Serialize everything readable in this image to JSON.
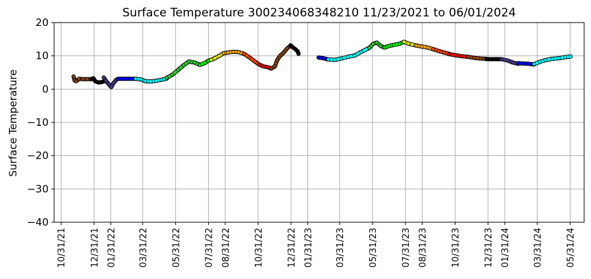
{
  "chart_data": {
    "type": "scatter",
    "title": "Surface Temperature 300234068348210  11/23/2021 to 06/01/2024",
    "xlabel": "",
    "ylabel": "Surface Temperature",
    "ylim": [
      -40,
      20
    ],
    "yticks": [
      20,
      10,
      0,
      -10,
      -20,
      -30,
      -40
    ],
    "xlim": [
      "2021-10-18",
      "2024-06-26"
    ],
    "xticks": [
      {
        "date": "2021-10-31",
        "label": "10/31/21"
      },
      {
        "date": "2021-12-31",
        "label": "12/31/21"
      },
      {
        "date": "2022-01-31",
        "label": "01/31/22"
      },
      {
        "date": "2022-03-31",
        "label": "03/31/22"
      },
      {
        "date": "2022-05-31",
        "label": "05/31/22"
      },
      {
        "date": "2022-07-31",
        "label": "07/31/22"
      },
      {
        "date": "2022-08-31",
        "label": "08/31/22"
      },
      {
        "date": "2022-10-31",
        "label": "10/31/22"
      },
      {
        "date": "2022-12-31",
        "label": "12/31/22"
      },
      {
        "date": "2023-01-31",
        "label": "01/31/23"
      },
      {
        "date": "2023-03-31",
        "label": "03/31/23"
      },
      {
        "date": "2023-05-31",
        "label": "05/31/23"
      },
      {
        "date": "2023-07-31",
        "label": "07/31/23"
      },
      {
        "date": "2023-08-31",
        "label": "08/31/23"
      },
      {
        "date": "2023-10-31",
        "label": "10/31/23"
      },
      {
        "date": "2023-12-31",
        "label": "12/31/23"
      },
      {
        "date": "2024-01-31",
        "label": "01/31/24"
      },
      {
        "date": "2024-03-31",
        "label": "03/31/24"
      },
      {
        "date": "2024-05-31",
        "label": "05/31/24"
      }
    ],
    "grid": true,
    "segments": [
      {
        "color": "#8B4513",
        "points": [
          [
            "2021-11-23",
            3.8
          ],
          [
            "2021-11-25",
            2.6
          ],
          [
            "2021-11-28",
            2.4
          ],
          [
            "2021-12-03",
            3.1
          ],
          [
            "2021-12-10",
            3.0
          ],
          [
            "2021-12-18",
            3.0
          ],
          [
            "2021-12-26",
            3.0
          ]
        ]
      },
      {
        "color": "#000000",
        "points": [
          [
            "2021-12-26",
            3.0
          ],
          [
            "2021-12-30",
            3.3
          ],
          [
            "2022-01-02",
            2.4
          ],
          [
            "2022-01-08",
            2.0
          ],
          [
            "2022-01-14",
            2.1
          ],
          [
            "2022-01-18",
            2.3
          ]
        ]
      },
      {
        "color": "#483D8B",
        "points": [
          [
            "2022-01-18",
            3.5
          ],
          [
            "2022-01-22",
            2.5
          ],
          [
            "2022-01-27",
            1.5
          ],
          [
            "2022-02-01",
            0.6
          ],
          [
            "2022-02-05",
            1.8
          ],
          [
            "2022-02-10",
            2.8
          ],
          [
            "2022-02-14",
            3.1
          ]
        ]
      },
      {
        "color": "#0000FF",
        "points": [
          [
            "2022-02-14",
            3.1
          ],
          [
            "2022-02-25",
            3.1
          ],
          [
            "2022-03-08",
            3.1
          ],
          [
            "2022-03-18",
            3.1
          ]
        ]
      },
      {
        "color": "#00FFFF",
        "points": [
          [
            "2022-03-18",
            3.1
          ],
          [
            "2022-03-28",
            2.9
          ],
          [
            "2022-04-05",
            2.4
          ],
          [
            "2022-04-15",
            2.3
          ],
          [
            "2022-04-25",
            2.5
          ],
          [
            "2022-05-05",
            2.8
          ],
          [
            "2022-05-15",
            3.2
          ]
        ]
      },
      {
        "color": "#32CD32",
        "points": [
          [
            "2022-05-15",
            3.4
          ],
          [
            "2022-05-25",
            4.3
          ],
          [
            "2022-06-05",
            5.8
          ],
          [
            "2022-06-15",
            7.2
          ],
          [
            "2022-06-25",
            8.3
          ],
          [
            "2022-07-05",
            8.0
          ],
          [
            "2022-07-15",
            7.3
          ]
        ]
      },
      {
        "color": "#00FF00",
        "points": [
          [
            "2022-07-15",
            7.3
          ],
          [
            "2022-07-25",
            7.9
          ],
          [
            "2022-07-31",
            8.6
          ],
          [
            "2022-08-05",
            8.8
          ]
        ]
      },
      {
        "color": "#FFFF00",
        "points": [
          [
            "2022-08-05",
            8.8
          ],
          [
            "2022-08-12",
            9.3
          ],
          [
            "2022-08-20",
            10.0
          ],
          [
            "2022-08-28",
            10.8
          ]
        ]
      },
      {
        "color": "#FFA500",
        "points": [
          [
            "2022-08-28",
            10.8
          ],
          [
            "2022-09-05",
            11.0
          ],
          [
            "2022-09-15",
            11.2
          ],
          [
            "2022-09-25",
            11.1
          ],
          [
            "2022-10-05",
            10.6
          ]
        ]
      },
      {
        "color": "#FF4500",
        "points": [
          [
            "2022-10-05",
            10.6
          ],
          [
            "2022-10-15",
            9.5
          ],
          [
            "2022-10-25",
            8.3
          ],
          [
            "2022-11-02",
            7.4
          ]
        ]
      },
      {
        "color": "#FF0000",
        "points": [
          [
            "2022-11-02",
            7.4
          ],
          [
            "2022-11-10",
            6.8
          ],
          [
            "2022-11-18",
            6.6
          ],
          [
            "2022-11-24",
            6.2
          ]
        ]
      },
      {
        "color": "#8B4513",
        "points": [
          [
            "2022-11-24",
            6.2
          ],
          [
            "2022-12-01",
            6.8
          ],
          [
            "2022-12-05",
            8.6
          ],
          [
            "2022-12-10",
            9.9
          ],
          [
            "2022-12-17",
            10.9
          ],
          [
            "2022-12-24",
            12.3
          ],
          [
            "2022-12-30",
            13.0
          ]
        ]
      },
      {
        "color": "#000000",
        "points": [
          [
            "2022-12-30",
            13.2
          ],
          [
            "2023-01-03",
            12.6
          ],
          [
            "2023-01-08",
            12.0
          ],
          [
            "2023-01-12",
            11.4
          ],
          [
            "2023-01-14",
            10.6
          ]
        ]
      },
      {
        "color": "#0000FF",
        "points": [
          [
            "2023-02-20",
            9.5
          ],
          [
            "2023-03-01",
            9.3
          ],
          [
            "2023-03-10",
            8.9
          ]
        ]
      },
      {
        "color": "#00FFFF",
        "points": [
          [
            "2023-03-10",
            8.9
          ],
          [
            "2023-03-22",
            8.8
          ],
          [
            "2023-04-03",
            9.2
          ],
          [
            "2023-04-15",
            9.7
          ],
          [
            "2023-04-28",
            10.1
          ],
          [
            "2023-05-10",
            11.2
          ],
          [
            "2023-05-25",
            12.4
          ]
        ]
      },
      {
        "color": "#32CD32",
        "points": [
          [
            "2023-05-25",
            12.4
          ],
          [
            "2023-06-01",
            13.6
          ],
          [
            "2023-06-08",
            14.0
          ],
          [
            "2023-06-15",
            13.0
          ],
          [
            "2023-06-22",
            12.5
          ]
        ]
      },
      {
        "color": "#00FF00",
        "points": [
          [
            "2023-06-22",
            12.5
          ],
          [
            "2023-07-01",
            13.0
          ],
          [
            "2023-07-10",
            13.3
          ],
          [
            "2023-07-20",
            13.6
          ],
          [
            "2023-07-28",
            14.2
          ]
        ]
      },
      {
        "color": "#FFFF00",
        "points": [
          [
            "2023-07-28",
            14.2
          ],
          [
            "2023-08-05",
            13.7
          ],
          [
            "2023-08-12",
            13.4
          ],
          [
            "2023-08-20",
            13.1
          ]
        ]
      },
      {
        "color": "#FFA500",
        "points": [
          [
            "2023-08-20",
            13.1
          ],
          [
            "2023-08-30",
            12.8
          ],
          [
            "2023-09-10",
            12.5
          ],
          [
            "2023-09-20",
            12.0
          ]
        ]
      },
      {
        "color": "#FF4500",
        "points": [
          [
            "2023-09-20",
            12.0
          ],
          [
            "2023-09-30",
            11.5
          ],
          [
            "2023-10-10",
            11.0
          ],
          [
            "2023-10-20",
            10.6
          ]
        ]
      },
      {
        "color": "#FF0000",
        "points": [
          [
            "2023-10-20",
            10.5
          ],
          [
            "2023-10-31",
            10.2
          ],
          [
            "2023-11-12",
            9.9
          ],
          [
            "2023-11-24",
            9.7
          ]
        ]
      },
      {
        "color": "#8B4513",
        "points": [
          [
            "2023-11-24",
            9.7
          ],
          [
            "2023-12-05",
            9.4
          ],
          [
            "2023-12-18",
            9.2
          ],
          [
            "2023-12-28",
            9.1
          ]
        ]
      },
      {
        "color": "#000000",
        "points": [
          [
            "2023-12-28",
            9.0
          ],
          [
            "2024-01-05",
            9.0
          ],
          [
            "2024-01-15",
            9.0
          ],
          [
            "2024-01-25",
            9.0
          ]
        ]
      },
      {
        "color": "#483D8B",
        "points": [
          [
            "2024-01-25",
            9.0
          ],
          [
            "2024-02-05",
            8.6
          ],
          [
            "2024-02-15",
            8.0
          ],
          [
            "2024-02-25",
            7.6
          ]
        ]
      },
      {
        "color": "#0000FF",
        "points": [
          [
            "2024-02-25",
            7.8
          ],
          [
            "2024-03-05",
            7.7
          ],
          [
            "2024-03-15",
            7.6
          ],
          [
            "2024-03-25",
            7.4
          ]
        ]
      },
      {
        "color": "#00FFFF",
        "points": [
          [
            "2024-03-25",
            7.5
          ],
          [
            "2024-04-05",
            8.2
          ],
          [
            "2024-04-15",
            8.7
          ],
          [
            "2024-04-28",
            9.1
          ],
          [
            "2024-05-10",
            9.3
          ],
          [
            "2024-05-22",
            9.6
          ],
          [
            "2024-06-01",
            9.8
          ]
        ]
      }
    ]
  }
}
